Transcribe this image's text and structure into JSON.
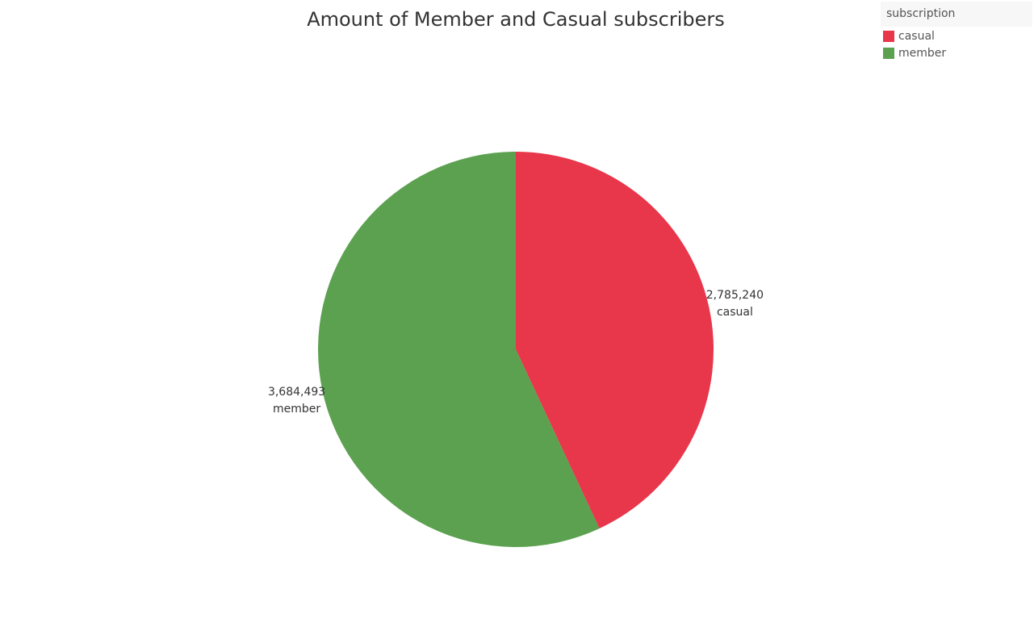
{
  "chart_data": {
    "type": "pie",
    "title": "Amount of Member and Casual subscribers",
    "legend_title": "subscription",
    "legend_position": "top-right",
    "categories": [
      "casual",
      "member"
    ],
    "values": [
      2785240,
      3684493
    ],
    "value_labels": [
      "2,785,240",
      "3,684,493"
    ],
    "colors": [
      "#e8364a",
      "#5ba14f"
    ],
    "start": "12 o'clock",
    "direction": "clockwise"
  }
}
